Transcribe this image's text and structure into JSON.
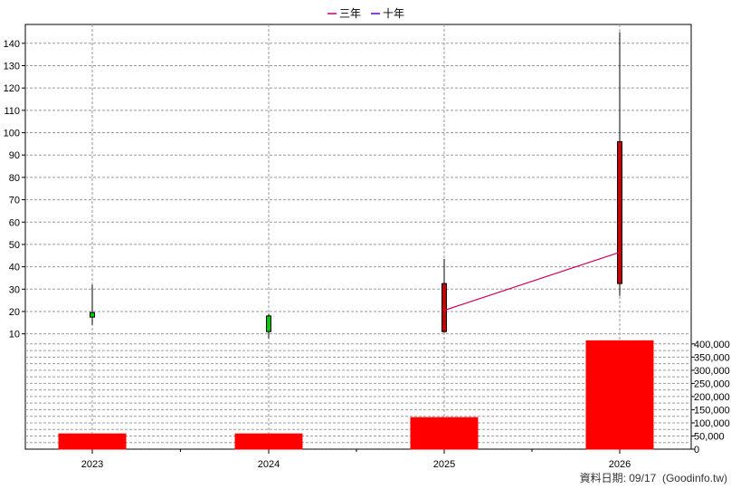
{
  "legend": [
    {
      "name": "三年",
      "color": "#cc0066"
    },
    {
      "name": "十年",
      "color": "#6600cc"
    }
  ],
  "footer": {
    "text": "資料日期: 09/17  (Goodinfo.tw)"
  },
  "chart_data": {
    "type": "candlestick-with-volume",
    "categories": [
      "2023",
      "2024",
      "2025",
      "2026"
    ],
    "price_axis": {
      "ylim": [
        5,
        146
      ],
      "ticks": [
        10,
        20,
        30,
        40,
        50,
        60,
        70,
        80,
        90,
        100,
        110,
        120,
        130,
        140
      ]
    },
    "volume_axis": {
      "ylim": [
        0,
        420000
      ],
      "ticks": [
        0,
        50000,
        100000,
        150000,
        200000,
        250000,
        300000,
        350000,
        400000
      ],
      "tick_labels": [
        "0",
        "50,000",
        "100,000",
        "150,000",
        "200,000",
        "250,000",
        "300,000",
        "350,000",
        "400,000"
      ]
    },
    "candles": [
      {
        "x": "2023",
        "open": 17.5,
        "close": 19.5,
        "high": 32,
        "low": 14,
        "color": "#00cc00"
      },
      {
        "x": "2024",
        "open": 11,
        "close": 18,
        "high": 19,
        "low": 8,
        "color": "#00cc00"
      },
      {
        "x": "2025",
        "open": 32.5,
        "close": 11,
        "high": 43.5,
        "low": 10.5,
        "color": "#cc0000"
      },
      {
        "x": "2026",
        "open": 96,
        "close": 32.5,
        "high": 145,
        "low": 27,
        "color": "#cc0000"
      }
    ],
    "volumes": [
      {
        "x": "2023",
        "value": 58000,
        "color": "#ff0000"
      },
      {
        "x": "2024",
        "value": 58000,
        "color": "#ff0000"
      },
      {
        "x": "2025",
        "value": 120000,
        "color": "#ff0000"
      },
      {
        "x": "2026",
        "value": 412000,
        "color": "#ff0000"
      }
    ],
    "series": [
      {
        "name": "三年",
        "points": [
          {
            "x": "2025",
            "y": 20.5
          },
          {
            "x": "2026",
            "y": 46.5
          }
        ],
        "color": "#cc0066"
      }
    ],
    "grid": true,
    "legend_position": "top-center"
  }
}
